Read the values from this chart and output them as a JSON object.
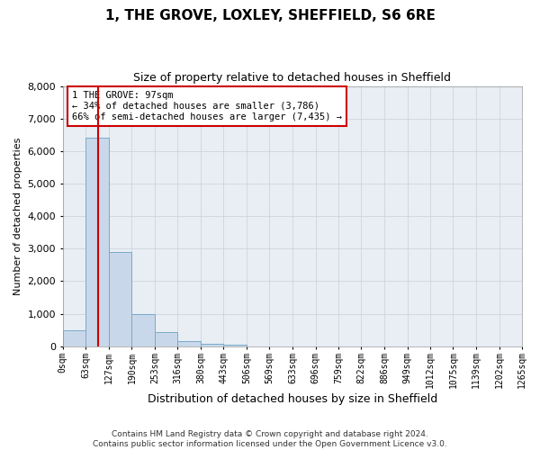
{
  "title": "1, THE GROVE, LOXLEY, SHEFFIELD, S6 6RE",
  "subtitle": "Size of property relative to detached houses in Sheffield",
  "xlabel": "Distribution of detached houses by size in Sheffield",
  "ylabel": "Number of detached properties",
  "footer_line1": "Contains HM Land Registry data © Crown copyright and database right 2024.",
  "footer_line2": "Contains public sector information licensed under the Open Government Licence v3.0.",
  "annotation_line1": "1 THE GROVE: 97sqm",
  "annotation_line2": "← 34% of detached houses are smaller (3,786)",
  "annotation_line3": "66% of semi-detached houses are larger (7,435) →",
  "property_size": 97,
  "bin_edges": [
    0,
    63,
    127,
    190,
    253,
    316,
    380,
    443,
    506,
    569,
    633,
    696,
    759,
    822,
    886,
    949,
    1012,
    1075,
    1139,
    1202,
    1265
  ],
  "bar_heights": [
    480,
    6400,
    2900,
    1000,
    430,
    170,
    80,
    50,
    0,
    0,
    0,
    0,
    0,
    0,
    0,
    0,
    0,
    0,
    0,
    0
  ],
  "bar_color": "#c8d8ea",
  "bar_edge_color": "#7aaac8",
  "vline_color": "#cc0000",
  "annotation_box_color": "#cc0000",
  "background_color": "#e8eef4",
  "ylim": [
    0,
    8000
  ],
  "yticks": [
    0,
    1000,
    2000,
    3000,
    4000,
    5000,
    6000,
    7000,
    8000
  ]
}
